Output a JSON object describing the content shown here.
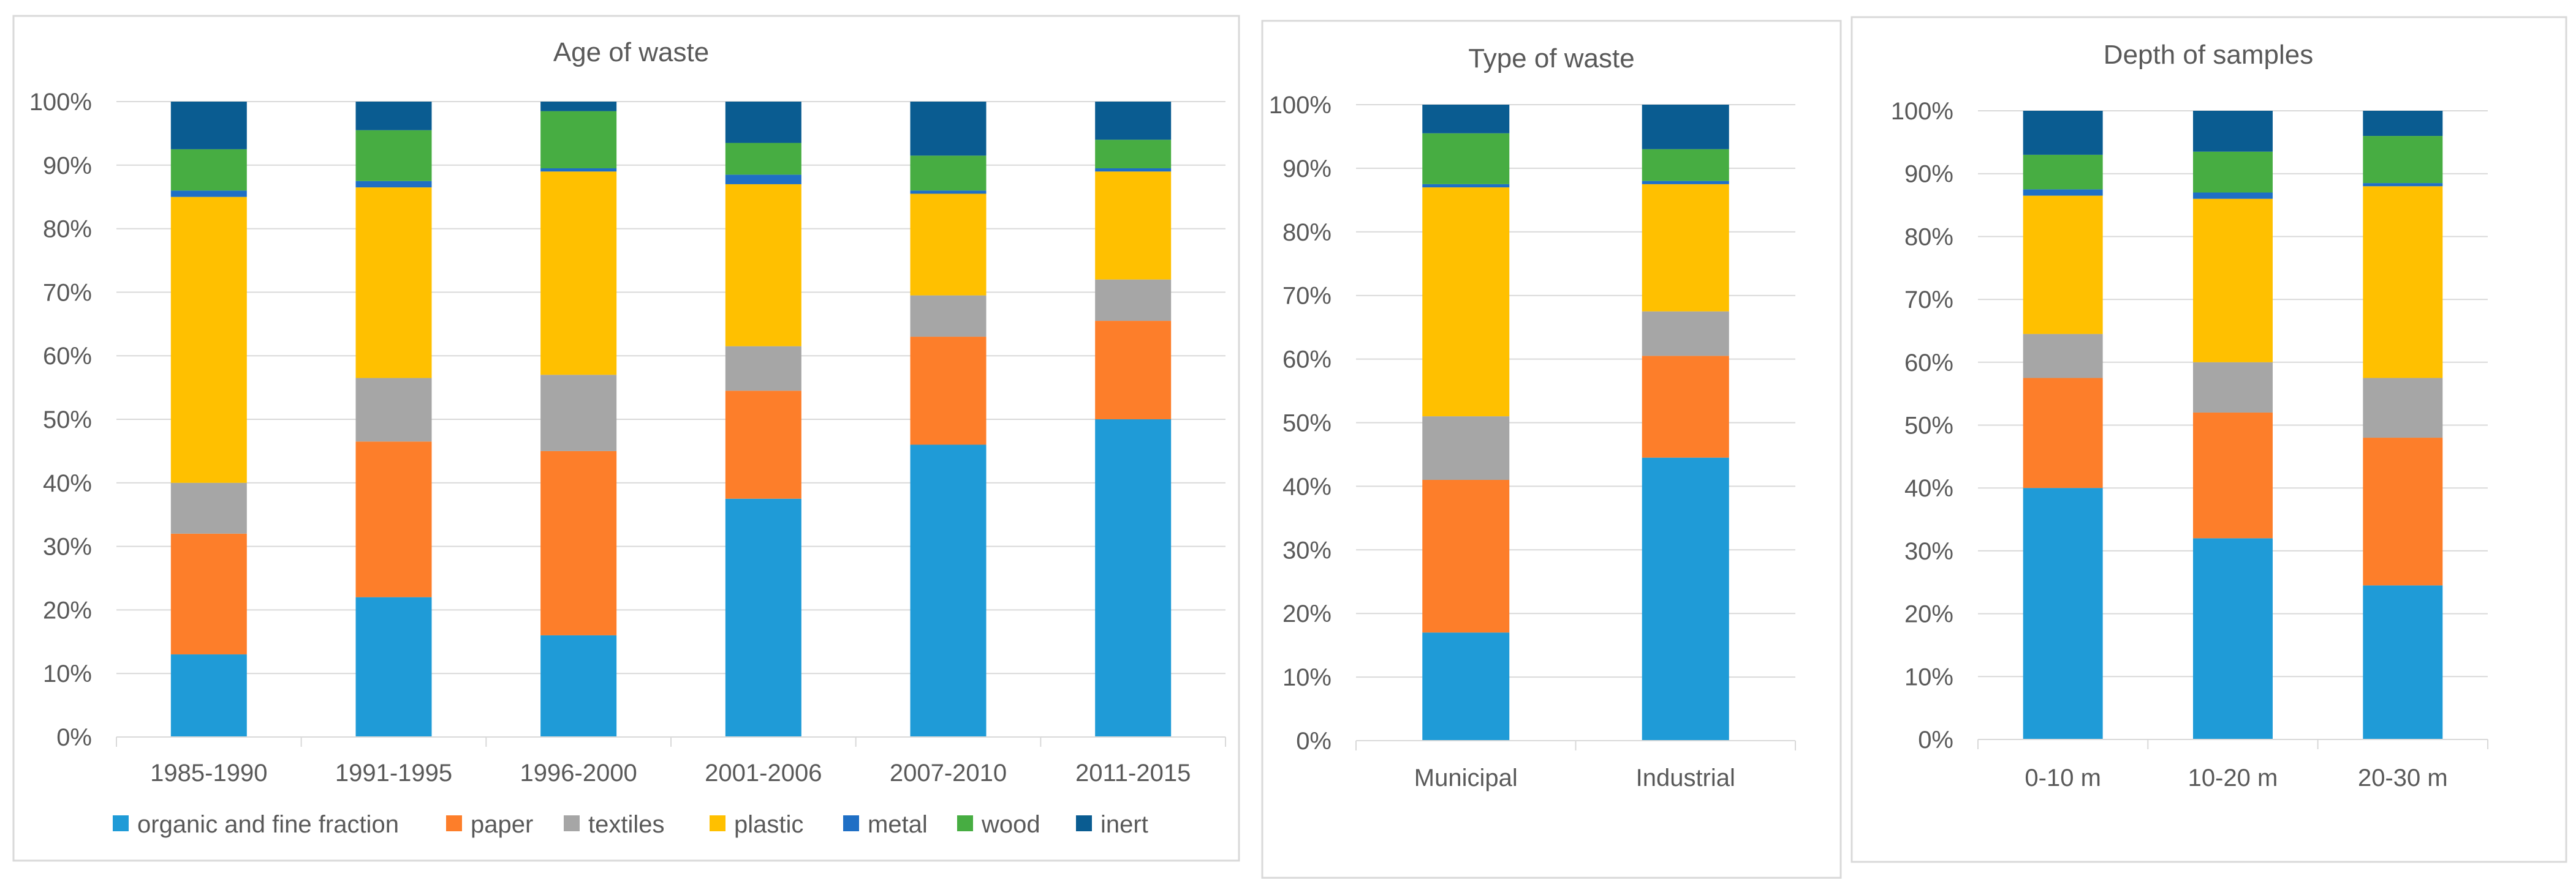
{
  "categories_meta": {
    "colors": {
      "organic and fine fraction": "#1f9bd7",
      "paper": "#fd7e2a",
      "textiles": "#a6a6a6",
      "plastic": "#ffc000",
      "metal": "#1f6fc5",
      "wood": "#47ad42",
      "inert": "#0a5c91"
    }
  },
  "legend": {
    "items": [
      "organic and fine fraction",
      "paper",
      "textiles",
      "plastic",
      "metal",
      "wood",
      "inert"
    ]
  },
  "chart_data": [
    {
      "type": "bar",
      "stacked": true,
      "title": "Age of waste",
      "categories": [
        "1985-1990",
        "1991-1995",
        "1996-2000",
        "2001-2006",
        "2007-2010",
        "2011-2015"
      ],
      "yticks": [
        "0%",
        "10%",
        "20%",
        "30%",
        "40%",
        "50%",
        "60%",
        "70%",
        "80%",
        "90%",
        "100%"
      ],
      "ylim": [
        0,
        100
      ],
      "series": [
        {
          "name": "organic and fine fraction",
          "values": [
            13,
            22,
            16,
            37.5,
            46,
            50
          ]
        },
        {
          "name": "paper",
          "values": [
            19,
            24.5,
            29,
            17,
            17,
            15.5
          ]
        },
        {
          "name": "textiles",
          "values": [
            8,
            10,
            12,
            7,
            6.5,
            6.5
          ]
        },
        {
          "name": "plastic",
          "values": [
            45,
            30,
            32,
            25.5,
            16,
            17
          ]
        },
        {
          "name": "metal",
          "values": [
            1,
            1,
            0.5,
            1.5,
            0.5,
            0.5
          ]
        },
        {
          "name": "wood",
          "values": [
            6.5,
            8,
            9,
            5,
            5.5,
            4.5
          ]
        },
        {
          "name": "inert",
          "values": [
            7.5,
            4.5,
            1.5,
            6.5,
            8.5,
            6
          ]
        }
      ]
    },
    {
      "type": "bar",
      "stacked": true,
      "title": "Type of waste",
      "categories": [
        "Municipal",
        "Industrial"
      ],
      "yticks": [
        "0%",
        "10%",
        "20%",
        "30%",
        "40%",
        "50%",
        "60%",
        "70%",
        "80%",
        "90%",
        "100%"
      ],
      "ylim": [
        0,
        100
      ],
      "series": [
        {
          "name": "organic and fine fraction",
          "values": [
            17,
            44.5
          ]
        },
        {
          "name": "paper",
          "values": [
            24,
            16
          ]
        },
        {
          "name": "textiles",
          "values": [
            10,
            7
          ]
        },
        {
          "name": "plastic",
          "values": [
            36,
            20
          ]
        },
        {
          "name": "metal",
          "values": [
            0.5,
            0.5
          ]
        },
        {
          "name": "wood",
          "values": [
            8,
            5
          ]
        },
        {
          "name": "inert",
          "values": [
            4.5,
            7
          ]
        }
      ]
    },
    {
      "type": "bar",
      "stacked": true,
      "title": "Depth of samples",
      "categories": [
        "0-10 m",
        "10-20 m",
        "20-30 m"
      ],
      "yticks": [
        "0%",
        "10%",
        "20%",
        "30%",
        "40%",
        "50%",
        "60%",
        "70%",
        "80%",
        "90%",
        "100%"
      ],
      "ylim": [
        0,
        100
      ],
      "series": [
        {
          "name": "organic and fine fraction",
          "values": [
            40,
            32,
            24.5
          ]
        },
        {
          "name": "paper",
          "values": [
            17.5,
            20,
            23.5
          ]
        },
        {
          "name": "textiles",
          "values": [
            7,
            8,
            9.5
          ]
        },
        {
          "name": "plastic",
          "values": [
            22,
            26,
            30.5
          ]
        },
        {
          "name": "metal",
          "values": [
            1,
            1,
            0.5
          ]
        },
        {
          "name": "wood",
          "values": [
            5.5,
            6.5,
            7.5
          ]
        },
        {
          "name": "inert",
          "values": [
            7,
            6.5,
            4
          ]
        }
      ]
    }
  ]
}
